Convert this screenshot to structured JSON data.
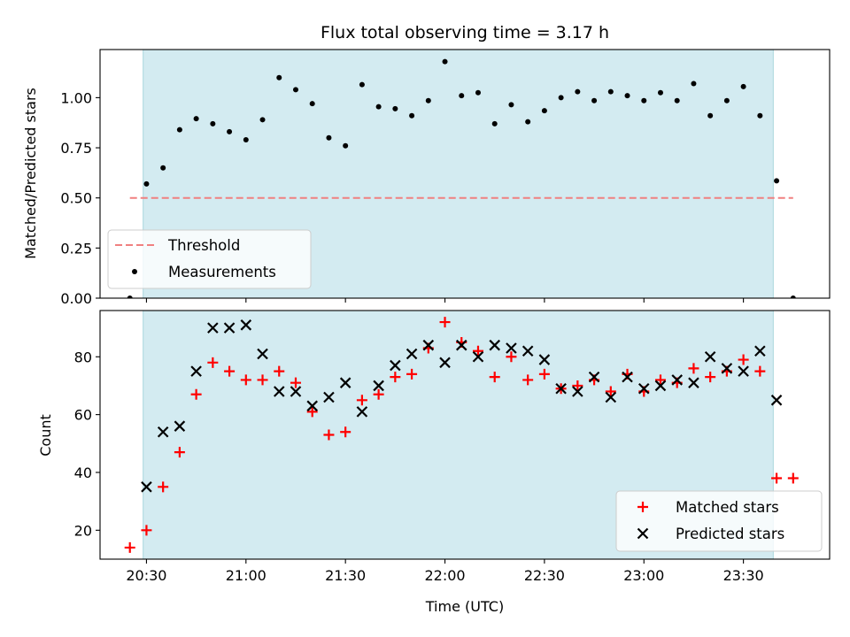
{
  "chart_data": [
    {
      "type": "scatter",
      "title": "Flux total observing time = 3.17 h",
      "xlabel": "",
      "ylabel": "Matched/Predicted stars",
      "ylim": [
        0,
        1.24
      ],
      "yticks": [
        "0.00",
        "0.25",
        "0.50",
        "0.75",
        "1.00"
      ],
      "ytick_values": [
        0,
        0.25,
        0.5,
        0.75,
        1.0
      ],
      "shaded_span": [
        "20:29",
        "23:39"
      ],
      "shade_color": "#d3ebf1",
      "legend_placement": "lower-left",
      "series": [
        {
          "name": "Threshold",
          "kind": "hline",
          "value": 0.5,
          "x_range": [
            "20:25",
            "23:45"
          ],
          "color": "#f08080",
          "style": "dashed"
        },
        {
          "name": "Measurements",
          "kind": "points",
          "color": "#000000",
          "x": [
            "20:25",
            "20:30",
            "20:35",
            "20:40",
            "20:45",
            "20:50",
            "20:55",
            "21:00",
            "21:05",
            "21:10",
            "21:15",
            "21:20",
            "21:25",
            "21:30",
            "21:35",
            "21:40",
            "21:45",
            "21:50",
            "21:55",
            "22:00",
            "22:05",
            "22:10",
            "22:15",
            "22:20",
            "22:25",
            "22:30",
            "22:35",
            "22:40",
            "22:45",
            "22:50",
            "22:55",
            "23:00",
            "23:05",
            "23:10",
            "23:15",
            "23:20",
            "23:25",
            "23:30",
            "23:35",
            "23:40",
            "23:45"
          ],
          "values": [
            0.0,
            0.57,
            0.65,
            0.84,
            0.895,
            0.87,
            0.83,
            0.79,
            0.89,
            1.1,
            1.04,
            0.97,
            0.8,
            0.76,
            1.065,
            0.955,
            0.945,
            0.91,
            0.985,
            1.18,
            1.01,
            1.025,
            0.87,
            0.965,
            0.88,
            0.935,
            1.0,
            1.03,
            0.985,
            1.03,
            1.01,
            0.985,
            1.025,
            0.985,
            1.07,
            0.91,
            0.985,
            1.055,
            0.91,
            0.585,
            0.0
          ]
        }
      ]
    },
    {
      "type": "scatter",
      "title": "",
      "xlabel": "Time (UTC)",
      "ylabel": "Count",
      "ylim": [
        10,
        96
      ],
      "yticks": [
        "20",
        "40",
        "60",
        "80"
      ],
      "ytick_values": [
        20,
        40,
        60,
        80
      ],
      "xticks": [
        "20:30",
        "21:00",
        "21:30",
        "22:00",
        "22:30",
        "23:00",
        "23:30"
      ],
      "xlim": [
        "20:16",
        "23:56"
      ],
      "shaded_span": [
        "20:29",
        "23:39"
      ],
      "shade_color": "#d3ebf1",
      "legend_placement": "lower-right",
      "series": [
        {
          "name": "Matched stars",
          "marker": "plus",
          "color": "#ff0000",
          "x": [
            "20:25",
            "20:30",
            "20:35",
            "20:40",
            "20:45",
            "20:50",
            "20:55",
            "21:00",
            "21:05",
            "21:10",
            "21:15",
            "21:20",
            "21:25",
            "21:30",
            "21:35",
            "21:40",
            "21:45",
            "21:50",
            "21:55",
            "22:00",
            "22:05",
            "22:10",
            "22:15",
            "22:20",
            "22:25",
            "22:30",
            "22:35",
            "22:40",
            "22:45",
            "22:50",
            "22:55",
            "23:00",
            "23:05",
            "23:10",
            "23:15",
            "23:20",
            "23:25",
            "23:30",
            "23:35",
            "23:40",
            "23:45"
          ],
          "values": [
            14,
            20,
            35,
            47,
            67,
            78,
            75,
            72,
            72,
            75,
            71,
            61,
            53,
            54,
            65,
            67,
            73,
            74,
            83,
            92,
            85,
            82,
            73,
            80,
            72,
            74,
            69,
            70,
            72,
            68,
            74,
            68,
            72,
            71,
            76,
            73,
            75,
            79,
            75,
            38,
            38
          ]
        },
        {
          "name": "Predicted stars",
          "marker": "x",
          "color": "#000000",
          "x": [
            "20:30",
            "20:35",
            "20:40",
            "20:45",
            "20:50",
            "20:55",
            "21:00",
            "21:05",
            "21:10",
            "21:15",
            "21:20",
            "21:25",
            "21:30",
            "21:35",
            "21:40",
            "21:45",
            "21:50",
            "21:55",
            "22:00",
            "22:05",
            "22:10",
            "22:15",
            "22:20",
            "22:25",
            "22:30",
            "22:35",
            "22:40",
            "22:45",
            "22:50",
            "22:55",
            "23:00",
            "23:05",
            "23:10",
            "23:15",
            "23:20",
            "23:25",
            "23:30",
            "23:35",
            "23:40"
          ],
          "values": [
            35,
            54,
            56,
            75,
            90,
            90,
            91,
            81,
            68,
            68,
            63,
            66,
            71,
            61,
            70,
            77,
            81,
            84,
            78,
            84,
            80,
            84,
            83,
            82,
            79,
            69,
            68,
            73,
            66,
            73,
            69,
            70,
            72,
            71,
            80,
            76,
            75,
            82,
            65
          ]
        }
      ]
    }
  ]
}
